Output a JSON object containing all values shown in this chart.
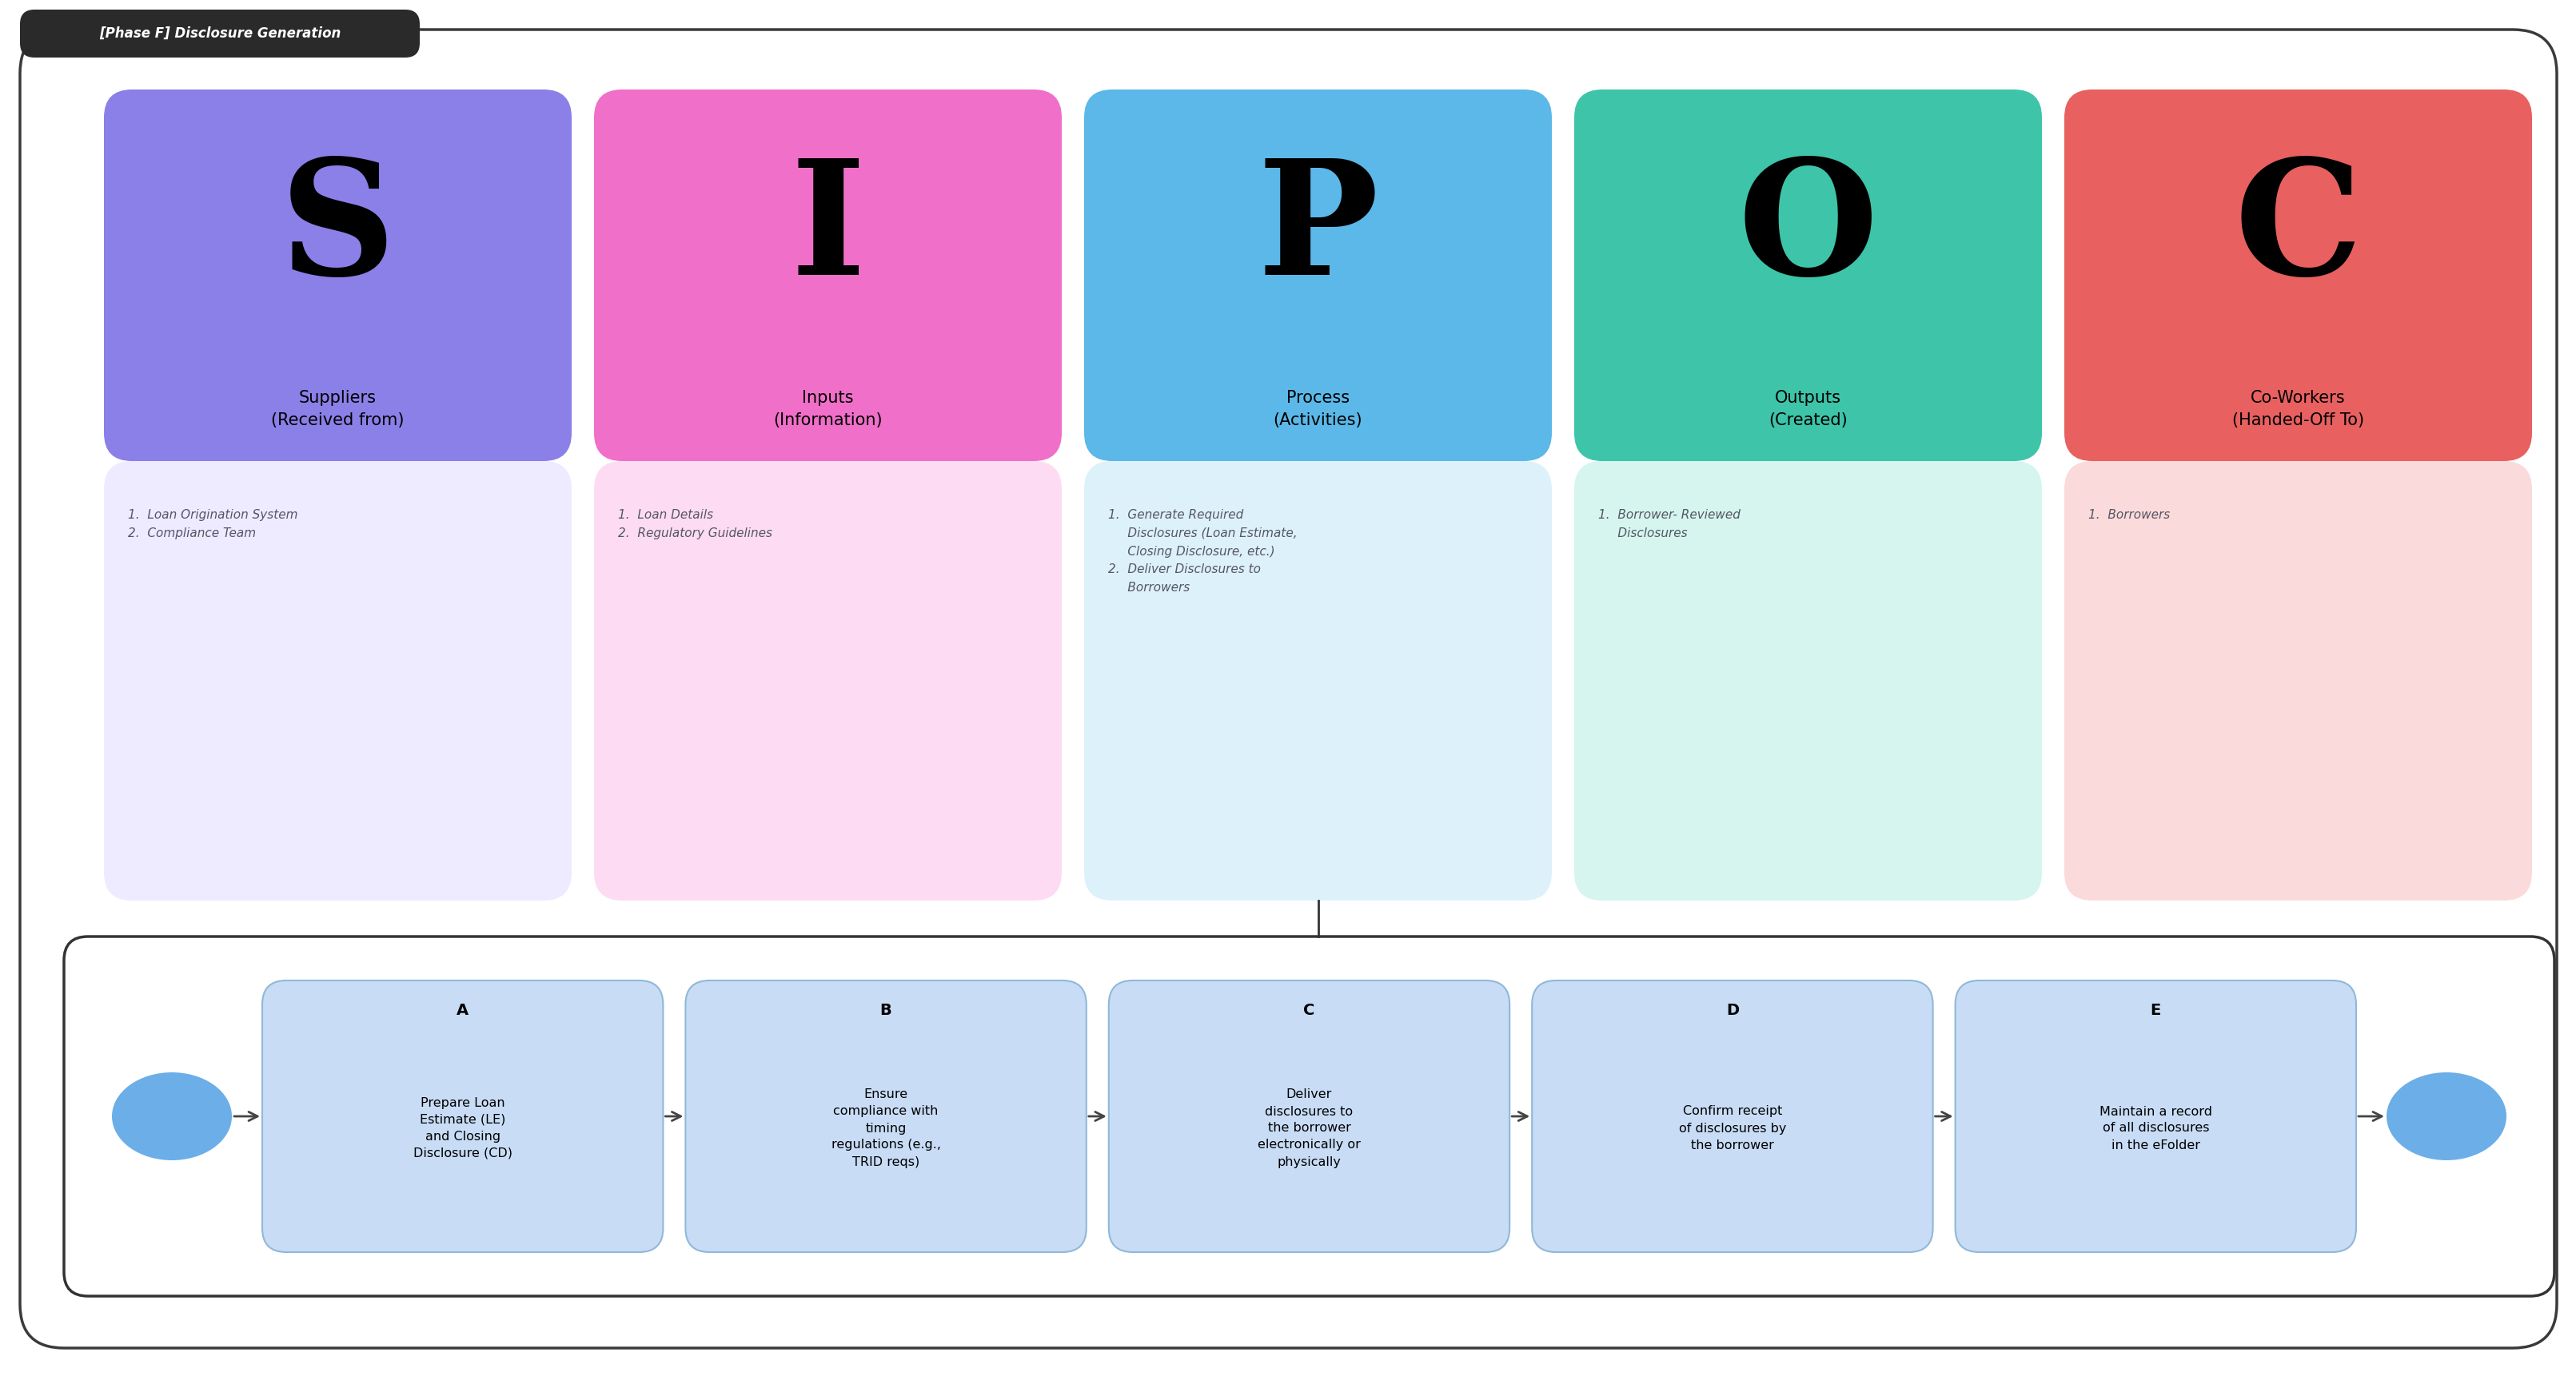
{
  "title": "[Phase F] Disclosure Generation",
  "bg_color": "#ffffff",
  "outer_box_color": "#3a3a3a",
  "sipoc_columns": [
    {
      "letter": "S",
      "header": "Suppliers\n(Received from)",
      "header_color": "#8B7FE8",
      "body_color": "#EEEAFF",
      "items": "1.  Loan Origination System\n2.  Compliance Team"
    },
    {
      "letter": "I",
      "header": "Inputs\n(Information)",
      "header_color": "#F06FC8",
      "body_color": "#FDDCF3",
      "items": "1.  Loan Details\n2.  Regulatory Guidelines"
    },
    {
      "letter": "P",
      "header": "Process\n(Activities)",
      "header_color": "#5BB8E8",
      "body_color": "#DDF1FB",
      "items": "1.  Generate Required\n     Disclosures (Loan Estimate,\n     Closing Disclosure, etc.)\n2.  Deliver Disclosures to\n     Borrowers"
    },
    {
      "letter": "O",
      "header": "Outputs\n(Created)",
      "header_color": "#3EC4A8",
      "body_color": "#D5F5EE",
      "items": "1.  Borrower- Reviewed\n     Disclosures"
    },
    {
      "letter": "C",
      "header": "Co-Workers\n(Handed-Off To)",
      "header_color": "#E86060",
      "body_color": "#FADADA",
      "items": "1.  Borrowers"
    }
  ],
  "process_steps": [
    {
      "label": "A",
      "text": "Prepare Loan\nEstimate (LE)\nand Closing\nDisclosure (CD)"
    },
    {
      "label": "B",
      "text": "Ensure\ncompliance with\ntiming\nregulations (e.g.,\nTRID reqs)"
    },
    {
      "label": "C",
      "text": "Deliver\ndisclosures to\nthe borrower\nelectronically or\nphysically"
    },
    {
      "label": "D",
      "text": "Confirm receipt\nof disclosures by\nthe borrower"
    },
    {
      "label": "E",
      "text": "Maintain a record\nof all disclosures\nin the eFolder"
    }
  ],
  "step_box_color": "#C8DCF5",
  "step_border_color": "#90B8D8",
  "oval_color": "#6BAEE8",
  "arrow_color": "#444444",
  "text_color": "#555566",
  "connector_color": "#333333",
  "steps_box_border": "#333333",
  "steps_box_bg": "#ffffff"
}
